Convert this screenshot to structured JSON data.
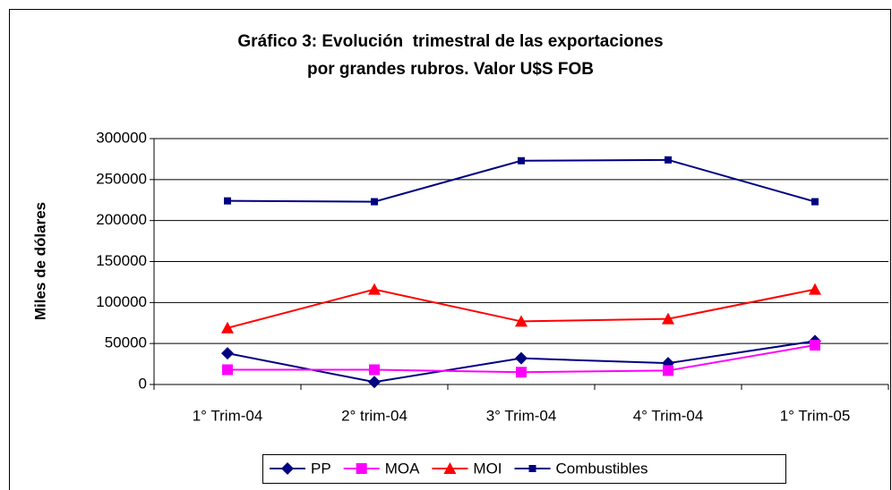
{
  "chart_data": {
    "type": "line",
    "title": [
      "Gráfico 3: Evolución  trimestral de las exportaciones",
      "por grandes rubros. Valor U$S FOB"
    ],
    "y_label": "Miles de dólares",
    "categories": [
      "1° Trim-04",
      "2° trim-04",
      "3° Trim-04",
      "4° Trim-04",
      "1° Trim-05"
    ],
    "series": [
      {
        "name": "PP",
        "color": "#000080",
        "marker": "diamond",
        "values": [
          38000,
          3000,
          32000,
          26000,
          53000
        ]
      },
      {
        "name": "MOA",
        "color": "#ff00ff",
        "marker": "square",
        "values": [
          18000,
          18000,
          15000,
          17000,
          48000
        ]
      },
      {
        "name": "MOI",
        "color": "#ff0000",
        "marker": "triangle",
        "values": [
          69000,
          116000,
          77000,
          80000,
          116000
        ]
      },
      {
        "name": "Combustibles",
        "color": "#000080",
        "marker": "smallsquare",
        "values": [
          224000,
          223000,
          273000,
          274000,
          223000
        ]
      }
    ],
    "ylim": [
      0,
      300000
    ],
    "yticks": [
      0,
      50000,
      100000,
      150000,
      200000,
      250000,
      300000
    ],
    "grid": true,
    "legend": "bottom"
  }
}
